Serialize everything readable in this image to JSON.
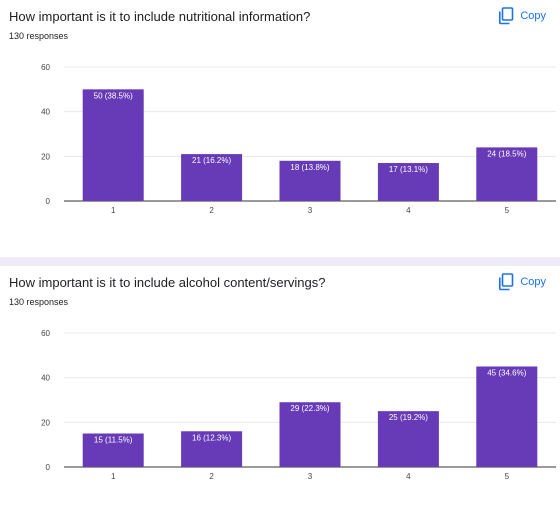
{
  "copy_label": "Copy",
  "colors": {
    "bar": "#673ab7",
    "copy": "#1a73e8",
    "grid": "#e8e8e8",
    "axis": "#333333"
  },
  "icons": {
    "copy": "copy-icon"
  },
  "questions": [
    {
      "title": "How important is it to include nutritional information?",
      "responses": "130 responses"
    },
    {
      "title": "How important is it to include alcohol content/servings?",
      "responses": "130 responses"
    }
  ],
  "chart_data": [
    {
      "type": "bar",
      "title": "How important is it to include nutritional information?",
      "categories": [
        "1",
        "2",
        "3",
        "4",
        "5"
      ],
      "values": [
        50,
        21,
        18,
        17,
        24
      ],
      "data_labels": [
        "50 (38.5%)",
        "21 (16.2%)",
        "18 (13.8%)",
        "17 (13.1%)",
        "24 (18.5%)"
      ],
      "yticks": [
        0,
        20,
        40,
        60
      ],
      "ylim": [
        0,
        60
      ],
      "grid": true
    },
    {
      "type": "bar",
      "title": "How important is it to include alcohol content/servings?",
      "categories": [
        "1",
        "2",
        "3",
        "4",
        "5"
      ],
      "values": [
        15,
        16,
        29,
        25,
        45
      ],
      "data_labels": [
        "15 (11.5%)",
        "16 (12.3%)",
        "29 (22.3%)",
        "25 (19.2%)",
        "45 (34.6%)"
      ],
      "yticks": [
        0,
        20,
        40,
        60
      ],
      "ylim": [
        0,
        60
      ],
      "grid": true
    }
  ]
}
